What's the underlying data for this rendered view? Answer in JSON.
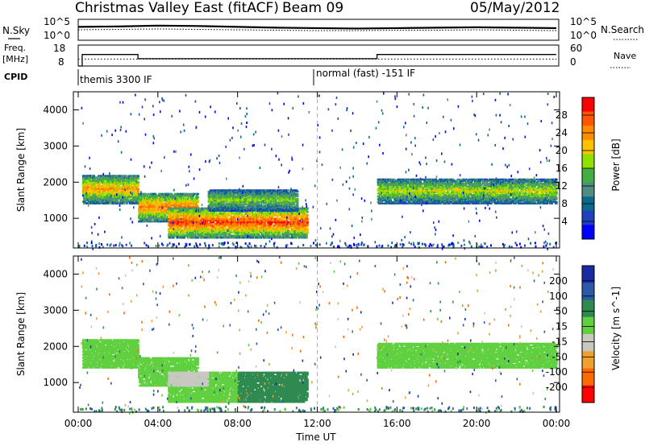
{
  "header": {
    "title": "Christmas Valley East (fitACF)",
    "beam": "Beam 09",
    "date": "05/May/2012"
  },
  "noise_panel": {
    "left_label": "N.Sky",
    "right_label": "N.Search",
    "left_ticks": [
      "10^5",
      "10^0"
    ],
    "right_ticks": [
      "10^5",
      "10^0"
    ]
  },
  "freq_panel": {
    "left_label_1": "Freq.",
    "left_label_2": "[MHz]",
    "right_label": "Nave",
    "left_ticks": [
      "18",
      "8"
    ],
    "right_ticks": [
      "60",
      "0"
    ]
  },
  "cpid_panel": {
    "label": "CPID",
    "segments": [
      {
        "label": "themis 3300 IF",
        "start_hour": 0.2
      },
      {
        "label": "normal (fast) -151 IF",
        "start_hour": 12.0
      }
    ]
  },
  "x_axis": {
    "label": "Time UT",
    "ticks": [
      "00:00",
      "04:00",
      "08:00",
      "12:00",
      "16:00",
      "20:00",
      "00:00"
    ],
    "range_hours": [
      0,
      24
    ]
  },
  "power_colorbar": {
    "label": "Power [dB]",
    "ticks": [
      "28",
      "24",
      "20",
      "16",
      "12",
      "8",
      "4"
    ],
    "colors": [
      "#ff0000",
      "#ff5500",
      "#ff8c00",
      "#ffc000",
      "#90e000",
      "#40b040",
      "#508c80",
      "#0a6a8c",
      "#2040c0",
      "#0000ff"
    ]
  },
  "velocity_colorbar": {
    "label": "Velocity [m s^-1]",
    "ticks": [
      "200",
      "100",
      "50",
      "15",
      "-15",
      "-50",
      "-100",
      "-200"
    ],
    "colors": [
      "#1a2aa0",
      "#2a5aa8",
      "#2f8a50",
      "#60d040",
      "#c8c8c0",
      "#f0a030",
      "#ff6a00",
      "#ff0000"
    ]
  },
  "chart_data": [
    {
      "type": "line",
      "panel": "noise",
      "xlabel": "",
      "x_range_hours": [
        0,
        24
      ],
      "series": [
        {
          "name": "N.Sky",
          "x": [
            0,
            2,
            4,
            6,
            8,
            10,
            12,
            14,
            16,
            18,
            20,
            22,
            24
          ],
          "values": [
            3.2,
            3.3,
            3.5,
            3.4,
            3.2,
            3.0,
            2.9,
            2.8,
            2.9,
            3.0,
            3.1,
            3.0,
            2.9
          ]
        },
        {
          "name": "N.Search",
          "x": [
            0,
            2,
            4,
            6,
            8,
            10,
            12,
            14,
            16,
            18,
            20,
            22,
            24
          ],
          "values": [
            2.5,
            2.6,
            2.7,
            2.6,
            2.5,
            2.4,
            2.3,
            2.3,
            2.4,
            2.4,
            2.5,
            2.4,
            2.3
          ]
        }
      ]
    },
    {
      "type": "line",
      "panel": "frequency",
      "x_range_hours": [
        0,
        24
      ],
      "series": [
        {
          "name": "Freq.",
          "x": [
            0,
            0.2,
            2.9,
            3.0,
            14.9,
            15.0,
            24
          ],
          "values": [
            8,
            13.5,
            13.5,
            11.5,
            11.5,
            13.5,
            13.5
          ]
        },
        {
          "name": "Nave",
          "x": [
            0,
            24
          ],
          "values": [
            20,
            20
          ]
        }
      ]
    },
    {
      "type": "heatmap",
      "panel": "power",
      "xlabel": "",
      "ylabel": "Slant Range [km]",
      "yticks": [
        "1000",
        "2000",
        "3000",
        "4000"
      ],
      "ylim": [
        180,
        4500
      ],
      "x_range_hours": [
        0,
        24
      ],
      "colorbar_range_db": [
        0,
        30
      ],
      "echo_regions": [
        {
          "t0": 0.2,
          "t1": 3.0,
          "r0": 1400,
          "r1": 2200,
          "core_db": 22
        },
        {
          "t0": 3.0,
          "t1": 6.0,
          "r0": 900,
          "r1": 1700,
          "core_db": 24
        },
        {
          "t0": 4.5,
          "t1": 11.5,
          "r0": 450,
          "r1": 1300,
          "core_db": 27
        },
        {
          "t0": 6.5,
          "t1": 11.0,
          "r0": 1200,
          "r1": 1800,
          "core_db": 16
        },
        {
          "t0": 15.0,
          "t1": 24.0,
          "r0": 1400,
          "r1": 2100,
          "core_db": 18
        }
      ]
    },
    {
      "type": "heatmap",
      "panel": "velocity",
      "xlabel": "Time UT",
      "ylabel": "Slant Range [km]",
      "yticks": [
        "1000",
        "2000",
        "3000",
        "4000"
      ],
      "ylim": [
        180,
        4500
      ],
      "x_range_hours": [
        0,
        24
      ],
      "colorbar_range_ms": [
        -200,
        200
      ],
      "echo_regions": [
        {
          "t0": 0.2,
          "t1": 3.0,
          "r0": 1400,
          "r1": 2200,
          "velocity": 0
        },
        {
          "t0": 3.0,
          "t1": 6.0,
          "r0": 900,
          "r1": 1700,
          "velocity": 0
        },
        {
          "t0": 4.5,
          "t1": 8.0,
          "r0": 450,
          "r1": 1300,
          "velocity": 0
        },
        {
          "t0": 8.0,
          "t1": 11.5,
          "r0": 450,
          "r1": 1300,
          "velocity": 40
        },
        {
          "t0": 4.5,
          "t1": 6.5,
          "r0": 900,
          "r1": 1300,
          "velocity": -40
        },
        {
          "t0": 15.0,
          "t1": 24.0,
          "r0": 1400,
          "r1": 2100,
          "velocity": 0
        }
      ]
    }
  ]
}
